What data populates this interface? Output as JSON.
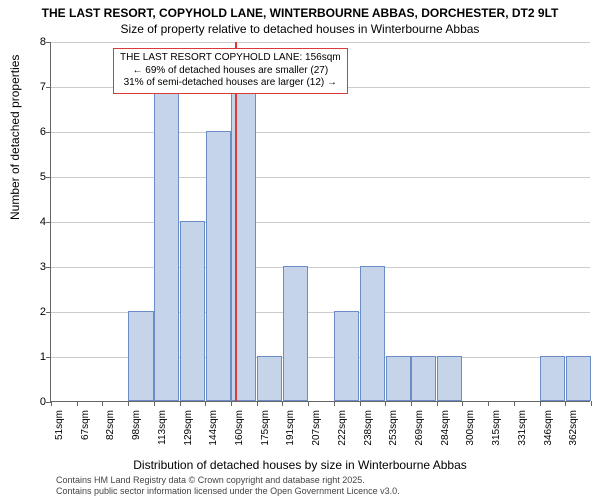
{
  "header": {
    "title": "THE LAST RESORT, COPYHOLD LANE, WINTERBOURNE ABBAS, DORCHESTER, DT2 9LT",
    "subtitle": "Size of property relative to detached houses in Winterbourne Abbas"
  },
  "chart": {
    "type": "histogram",
    "background_color": "#ffffff",
    "grid_color": "#cccccc",
    "bar_fill": "#c6d4ea",
    "bar_border": "#6a8cc7",
    "marker_color": "#d93a3a",
    "annotation_border": "#d93a3a",
    "y": {
      "title": "Number of detached properties",
      "min": 0,
      "max": 8,
      "ticks": [
        0,
        1,
        2,
        3,
        4,
        5,
        6,
        7,
        8
      ]
    },
    "x": {
      "title": "Distribution of detached houses by size in Winterbourne Abbas",
      "labels": [
        "51sqm",
        "67sqm",
        "82sqm",
        "98sqm",
        "113sqm",
        "129sqm",
        "144sqm",
        "160sqm",
        "175sqm",
        "191sqm",
        "207sqm",
        "222sqm",
        "238sqm",
        "253sqm",
        "269sqm",
        "284sqm",
        "300sqm",
        "315sqm",
        "331sqm",
        "346sqm",
        "362sqm"
      ]
    },
    "bars": [
      0,
      0,
      0,
      2,
      7,
      4,
      6,
      7,
      1,
      3,
      0,
      2,
      3,
      1,
      1,
      1,
      0,
      0,
      0,
      1,
      1
    ],
    "marker_position": 7.15,
    "annotation": {
      "line1": "THE LAST RESORT COPYHOLD LANE: 156sqm",
      "line2": "← 69% of detached houses are smaller (27)",
      "line3": "31% of semi-detached houses are larger (12) →"
    }
  },
  "attribution": {
    "line1": "Contains HM Land Registry data © Crown copyright and database right 2025.",
    "line2": "Contains public sector information licensed under the Open Government Licence v3.0."
  }
}
